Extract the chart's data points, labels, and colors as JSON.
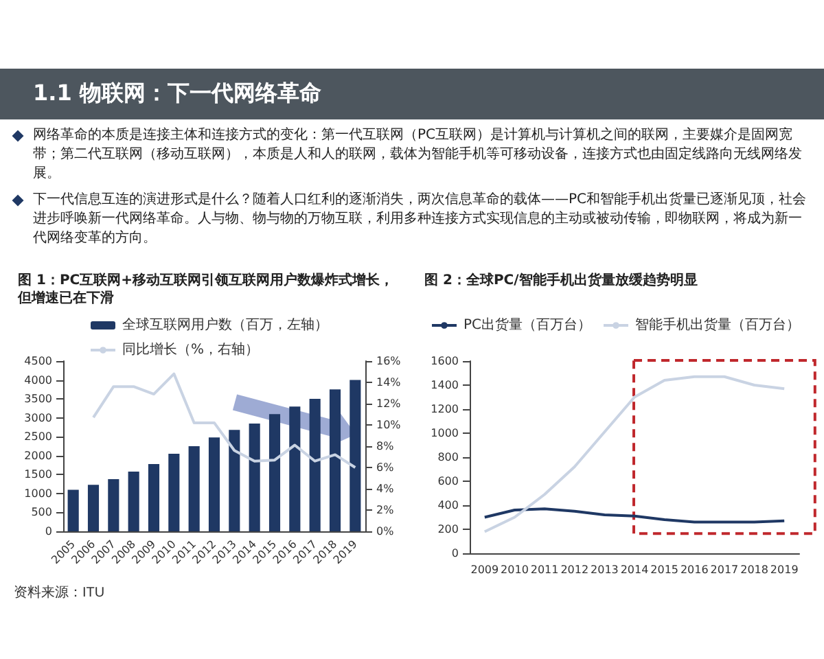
{
  "chart_data": [
    {
      "type": "other",
      "title": "1.1 物联网：下一代网络革命",
      "annotations": [
        "网络革命的本质是连接主体和连接方式的变化：第一代互联网（PC互联网）是计算机与计算机之间的联网，主要媒介是固网宽带；第二代互联网（移动互联网），本质是人和人的联网，载体为智能手机等可移动设备，连接方式也由固定线路向无线网络发展。",
        "下一代信息互连的演进形式是什么？随着人口红利的逐渐消失，两次信息革命的载体——PC和智能手机出货量已逐渐见顶，社会进步呼唤新一代网络革命。人与物、物与物的万物互联，利用多种连接方式实现信息的主动或被动传输，即物联网，将成为新一代网络变革的方向。"
      ]
    },
    {
      "type": "bar",
      "title": "图 1：PC互联网+移动互联网引领互联网用户数爆炸式增长，但增速已在下滑",
      "categories": [
        "2005",
        "2006",
        "2007",
        "2008",
        "2009",
        "2010",
        "2011",
        "2012",
        "2013",
        "2014",
        "2015",
        "2016",
        "2017",
        "2018",
        "2019"
      ],
      "series": [
        {
          "name": "全球互联网用户数（百万，左轴）",
          "color": "#1f3864",
          "values": [
            1100,
            1230,
            1380,
            1580,
            1780,
            2050,
            2250,
            2480,
            2680,
            2850,
            3100,
            3300,
            3500,
            3750,
            4000
          ]
        },
        {
          "name": "同比增长（%，右轴）",
          "type": "line",
          "axis": "y2",
          "color": "#c9d3e3",
          "values": [
            null,
            10.7,
            13.6,
            13.6,
            12.9,
            14.8,
            10.2,
            10.2,
            7.6,
            6.6,
            6.7,
            8.1,
            6.6,
            7.2,
            6.0
          ]
        }
      ],
      "ylim": [
        0,
        4500
      ],
      "yticks": [
        0,
        500,
        1000,
        1500,
        2000,
        2500,
        3000,
        3500,
        4000,
        4500
      ],
      "y2lim": [
        0,
        16
      ],
      "y2ticks": [
        {
          "value": 0,
          "label": "0%"
        },
        {
          "value": 2,
          "label": "2%"
        },
        {
          "value": 4,
          "label": "4%"
        },
        {
          "value": 6,
          "label": "6%"
        },
        {
          "value": 8,
          "label": "8%"
        },
        {
          "value": 10,
          "label": "10%"
        },
        {
          "value": 12,
          "label": "12%"
        },
        {
          "value": 14,
          "label": "14%"
        },
        {
          "value": 16,
          "label": "16%"
        }
      ],
      "legend": "top",
      "marker": "none",
      "annotations": [
        "资料来源：ITU"
      ]
    },
    {
      "type": "line",
      "title": "图 2：全球PC/智能手机出货量放缓趋势明显",
      "categories": [
        "2009",
        "2010",
        "2011",
        "2012",
        "2013",
        "2014",
        "2015",
        "2016",
        "2017",
        "2018",
        "2019"
      ],
      "series": [
        {
          "name": "PC出货量（百万台）",
          "color": "#1f3864",
          "values": [
            300,
            360,
            370,
            350,
            320,
            310,
            280,
            260,
            260,
            260,
            270
          ]
        },
        {
          "name": "智能手机出货量（百万台）",
          "color": "#c9d3e3",
          "values": [
            180,
            300,
            490,
            720,
            1010,
            1300,
            1440,
            1470,
            1470,
            1400,
            1370
          ]
        }
      ],
      "ylim": [
        0,
        1600
      ],
      "yticks": [
        0,
        200,
        400,
        600,
        800,
        1000,
        1200,
        1400,
        1600
      ],
      "legend": "top",
      "marker": "none"
    }
  ]
}
